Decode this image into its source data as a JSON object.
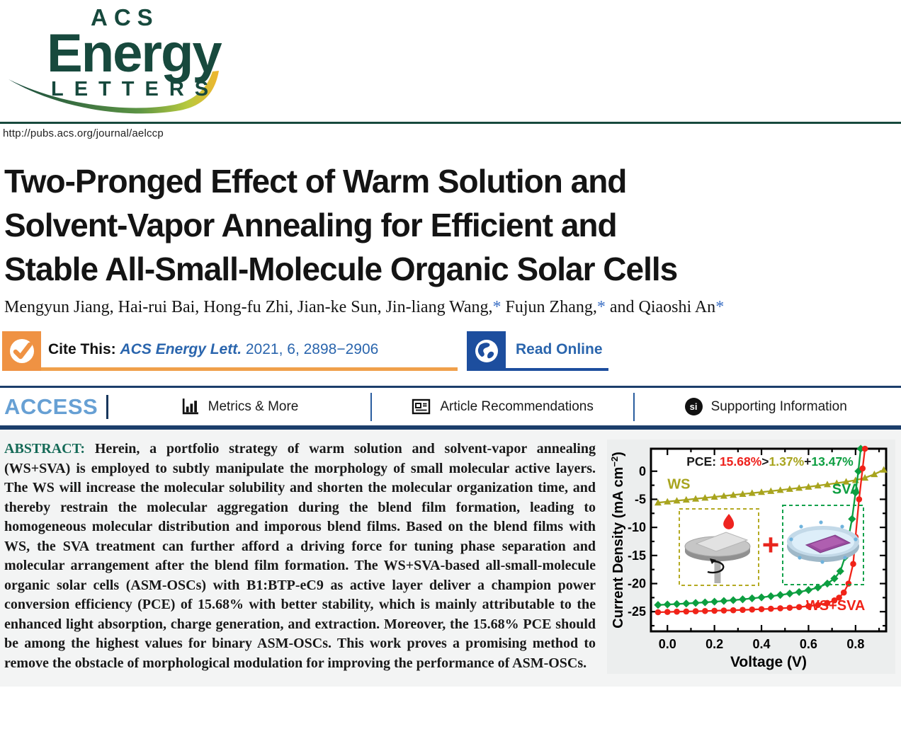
{
  "header": {
    "logo": {
      "acs": "ACS",
      "energy": "Energy",
      "letters": "LETTERS"
    },
    "url": "http://pubs.acs.org/journal/aelccp"
  },
  "article": {
    "title_lines": [
      "Two-Pronged Effect of Warm Solution and",
      "Solvent-Vapor Annealing for Efficient and",
      "Stable All-Small-Molecule Organic Solar Cells"
    ],
    "authors": {
      "group1": "Mengyun Jiang, Hai-rui Bai, Hong-fu Zhi, Jian-ke Sun, Jin-liang Wang,",
      "star1": "*",
      "group2": " Fujun Zhang,",
      "star2": "*",
      "group3": " and Qiaoshi An",
      "star3": "*"
    }
  },
  "cite_bar": {
    "cite_label": "Cite This:",
    "journal_ref_italic": "ACS Energy Lett.",
    "journal_ref_rest": " 2021, 6, 2898−2906",
    "read_online_label": "Read Online"
  },
  "access_bar": {
    "access_label": "ACCESS",
    "items": [
      "Metrics & More",
      "Article Recommendations",
      "Supporting Information"
    ],
    "si_badge": "si"
  },
  "abstract": {
    "label": "ABSTRACT:",
    "text": " Herein, a portfolio strategy of warm solution and solvent-vapor annealing (WS+SVA) is employed to subtly manipulate the morphology of small molecular active layers. The WS will increase the molecular solubility and shorten the molecular organization time, and thereby restrain the molecular aggregation during the blend film formation, leading to homogeneous molecular distribution and imporous blend films. Based on the blend films with WS, the SVA treatment can further afford a driving force for tuning phase separation and molecular arrangement after the blend film formation. The WS+SVA-based all-small-molecule organic solar cells (ASM-OSCs) with B1:BTP-eC9 as active layer deliver a champion power conversion efficiency (PCE) of 15.68% with better stability, which is mainly attributable to the enhanced light absorption, charge generation, and extraction. Moreover, the 15.68% PCE should be among the highest values for binary ASM-OSCs. This work proves a promising method to remove the obstacle of morphological modulation for improving the performance of ASM-OSCs."
  },
  "chart_data": {
    "type": "line",
    "xlabel": "Voltage (V)",
    "ylabel": "Current Density (mA cm⁻²)",
    "ylabel_parts": {
      "main": "Current Density (mA cm",
      "sup": "−2",
      "close": ")"
    },
    "xlim": [
      -0.07,
      0.93
    ],
    "ylim": [
      -28.5,
      4
    ],
    "x_ticks": [
      {
        "v": 0.0,
        "label": "0.0"
      },
      {
        "v": 0.2,
        "label": "0.2"
      },
      {
        "v": 0.4,
        "label": "0.4"
      },
      {
        "v": 0.6,
        "label": "0.6"
      },
      {
        "v": 0.8,
        "label": "0.8"
      }
    ],
    "x_minor_ticks": [
      0.1,
      0.3,
      0.5,
      0.7,
      0.9
    ],
    "y_ticks": [
      {
        "v": 0,
        "label": "0"
      },
      {
        "v": -5,
        "label": "-5"
      },
      {
        "v": -10,
        "label": "-10"
      },
      {
        "v": -15,
        "label": "-15"
      },
      {
        "v": -20,
        "label": "-20"
      },
      {
        "v": -25,
        "label": "-25"
      }
    ],
    "y_minor_ticks": [
      -2.5,
      -7.5,
      -12.5,
      -17.5,
      -22.5,
      -27.5
    ],
    "legend_position": "inline-labels",
    "grid": false,
    "pce_annotation": [
      {
        "text": "PCE: ",
        "color": "#1a1a1a"
      },
      {
        "text": "15.68%",
        "color": "#ee211c"
      },
      {
        "text": ">",
        "color": "#1a1a1a"
      },
      {
        "text": "1.37%",
        "color": "#a8a41e"
      },
      {
        "text": "+",
        "color": "#1a1a1a"
      },
      {
        "text": "13.47%",
        "color": "#0c9e40"
      }
    ],
    "inset_plus": "+",
    "series": [
      {
        "name": "WS",
        "color": "#a8a41e",
        "marker": "triangle",
        "label_pos": [
          0.0,
          -3.1
        ],
        "label_anchor": "start",
        "points": [
          [
            -0.04,
            -5.6
          ],
          [
            0,
            -5.42
          ],
          [
            0.04,
            -5.25
          ],
          [
            0.08,
            -5.08
          ],
          [
            0.12,
            -4.91
          ],
          [
            0.16,
            -4.74
          ],
          [
            0.2,
            -4.57
          ],
          [
            0.24,
            -4.4
          ],
          [
            0.28,
            -4.23
          ],
          [
            0.32,
            -4.06
          ],
          [
            0.36,
            -3.89
          ],
          [
            0.4,
            -3.72
          ],
          [
            0.44,
            -3.54
          ],
          [
            0.48,
            -3.36
          ],
          [
            0.52,
            -3.17
          ],
          [
            0.56,
            -2.98
          ],
          [
            0.6,
            -2.78
          ],
          [
            0.64,
            -2.57
          ],
          [
            0.68,
            -2.35
          ],
          [
            0.72,
            -2.12
          ],
          [
            0.76,
            -1.87
          ],
          [
            0.8,
            -1.6
          ],
          [
            0.84,
            -1.18
          ],
          [
            0.88,
            -0.55
          ],
          [
            0.92,
            0.25
          ]
        ]
      },
      {
        "name": "SVA",
        "color": "#0c9e40",
        "marker": "diamond",
        "label_pos": [
          0.76,
          -4.0
        ],
        "label_anchor": "middle",
        "points": [
          [
            -0.04,
            -23.8
          ],
          [
            0,
            -23.72
          ],
          [
            0.04,
            -23.64
          ],
          [
            0.08,
            -23.55
          ],
          [
            0.12,
            -23.45
          ],
          [
            0.16,
            -23.34
          ],
          [
            0.2,
            -23.22
          ],
          [
            0.24,
            -23.09
          ],
          [
            0.28,
            -22.95
          ],
          [
            0.32,
            -22.8
          ],
          [
            0.36,
            -22.63
          ],
          [
            0.4,
            -22.45
          ],
          [
            0.44,
            -22.25
          ],
          [
            0.48,
            -22.03
          ],
          [
            0.52,
            -21.78
          ],
          [
            0.56,
            -21.5
          ],
          [
            0.6,
            -21.15
          ],
          [
            0.64,
            -20.7
          ],
          [
            0.68,
            -20
          ],
          [
            0.71,
            -19.1
          ],
          [
            0.735,
            -17.8
          ],
          [
            0.755,
            -15.3
          ],
          [
            0.77,
            -11.8
          ],
          [
            0.785,
            -8.5
          ],
          [
            0.8,
            -3.8
          ],
          [
            0.812,
            0
          ],
          [
            0.822,
            4
          ]
        ]
      },
      {
        "name": "WS+SVA",
        "color": "#f02318",
        "marker": "circle",
        "label_pos": [
          0.715,
          -24.7
        ],
        "label_anchor": "middle",
        "points": [
          [
            -0.04,
            -25.1
          ],
          [
            0,
            -25.05
          ],
          [
            0.04,
            -25
          ],
          [
            0.08,
            -24.96
          ],
          [
            0.12,
            -24.92
          ],
          [
            0.16,
            -24.88
          ],
          [
            0.2,
            -24.84
          ],
          [
            0.24,
            -24.79
          ],
          [
            0.28,
            -24.74
          ],
          [
            0.32,
            -24.68
          ],
          [
            0.36,
            -24.62
          ],
          [
            0.4,
            -24.55
          ],
          [
            0.44,
            -24.48
          ],
          [
            0.48,
            -24.4
          ],
          [
            0.52,
            -24.3
          ],
          [
            0.56,
            -24.18
          ],
          [
            0.6,
            -24.02
          ],
          [
            0.64,
            -23.8
          ],
          [
            0.68,
            -23.45
          ],
          [
            0.71,
            -23
          ],
          [
            0.73,
            -22.5
          ],
          [
            0.75,
            -21.6
          ],
          [
            0.77,
            -20
          ],
          [
            0.79,
            -16.5
          ],
          [
            0.8,
            -11.7
          ],
          [
            0.815,
            -5
          ],
          [
            0.83,
            0.5
          ],
          [
            0.84,
            4
          ]
        ]
      }
    ]
  }
}
